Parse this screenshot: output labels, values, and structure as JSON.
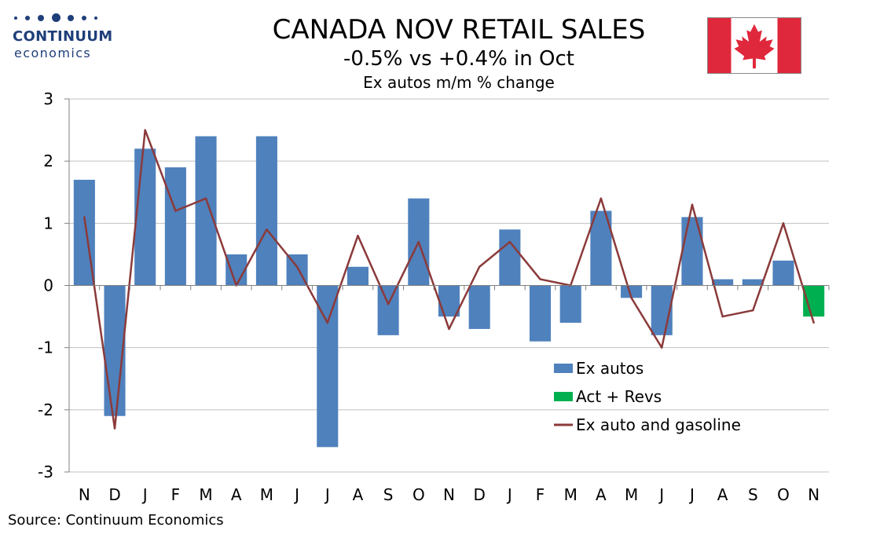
{
  "logo": {
    "name": "CONTINUUM",
    "sub": "economics"
  },
  "flag": {
    "icon": "canada-flag-icon",
    "red": "#e0283c",
    "white": "#ffffff"
  },
  "source": "Source: Continuum Economics",
  "colors": {
    "ex_autos": "#4f81bd",
    "act_revs": "#00b050",
    "line": "#8b3a3a",
    "grid": "#c0c0c0"
  },
  "chart_data": {
    "type": "bar",
    "title": "CANADA NOV RETAIL SALES",
    "subtitle": "-0.5% vs +0.4% in Oct",
    "subtitle2": "Ex autos m/m % change",
    "categories": [
      "N",
      "D",
      "J",
      "F",
      "M",
      "A",
      "M",
      "J",
      "J",
      "A",
      "S",
      "O",
      "N",
      "D",
      "J",
      "F",
      "M",
      "A",
      "M",
      "J",
      "J",
      "A",
      "S",
      "O",
      "N"
    ],
    "ylim": [
      -3,
      3
    ],
    "yticks": [
      3,
      2,
      1,
      0,
      -1,
      -2,
      -3
    ],
    "grid": true,
    "legend_position": "lower-right",
    "series": [
      {
        "name": "Ex autos",
        "type": "bar",
        "values": [
          1.7,
          -2.1,
          2.2,
          1.9,
          2.4,
          0.5,
          2.4,
          0.5,
          -2.6,
          0.3,
          -0.8,
          1.4,
          -0.5,
          -0.7,
          0.9,
          -0.9,
          -0.6,
          1.2,
          -0.2,
          -0.8,
          1.1,
          0.1,
          0.1,
          0.4,
          null
        ]
      },
      {
        "name": "Act + Revs",
        "type": "bar",
        "values": [
          null,
          null,
          null,
          null,
          null,
          null,
          null,
          null,
          null,
          null,
          null,
          null,
          null,
          null,
          null,
          null,
          null,
          null,
          null,
          null,
          null,
          null,
          null,
          null,
          -0.5
        ]
      },
      {
        "name": "Ex auto and gasoline",
        "type": "line",
        "values": [
          1.1,
          -2.3,
          2.5,
          1.2,
          1.4,
          0.0,
          0.9,
          0.3,
          -0.6,
          0.8,
          -0.3,
          0.7,
          -0.7,
          0.3,
          0.7,
          0.1,
          0.0,
          1.4,
          -0.2,
          -1.0,
          1.3,
          -0.5,
          -0.4,
          1.0,
          -0.6
        ]
      }
    ]
  }
}
